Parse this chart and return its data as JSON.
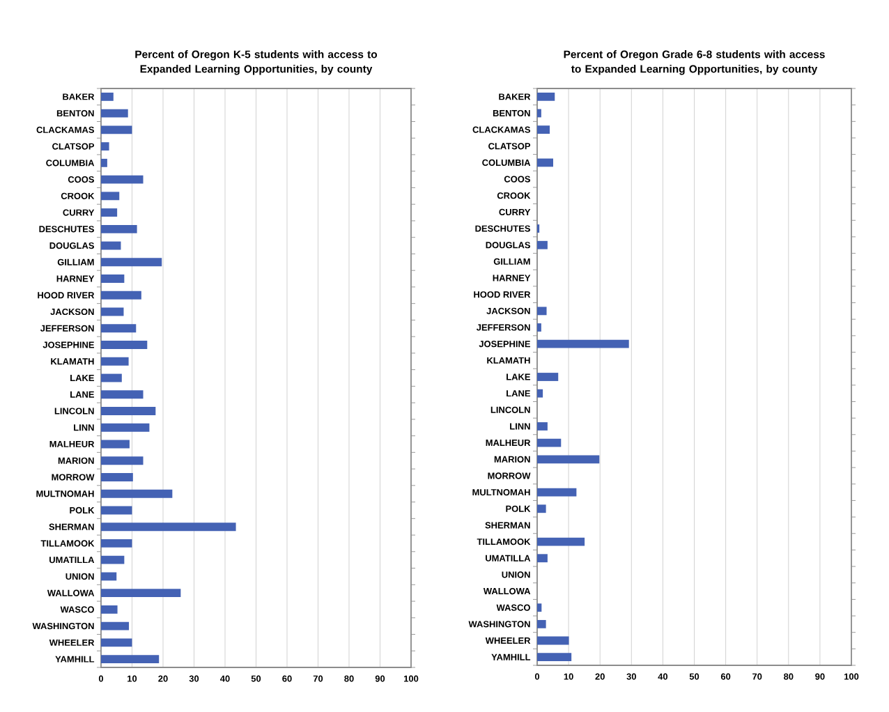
{
  "chart_data": [
    {
      "type": "bar",
      "orientation": "horizontal",
      "title": "Percent of Oregon K-5 students with access to Expanded Learning Opportunities, by county",
      "color": "#4462b4",
      "grid": "x",
      "xlim": [
        0,
        100
      ],
      "xticks": [
        0,
        10,
        20,
        30,
        40,
        50,
        60,
        70,
        80,
        90,
        100
      ],
      "categories": [
        "BAKER",
        "BENTON",
        "CLACKAMAS",
        "CLATSOP",
        "COLUMBIA",
        "COOS",
        "CROOK",
        "CURRY",
        "DESCHUTES",
        "DOUGLAS",
        "GILLIAM",
        "HARNEY",
        "HOOD RIVER",
        "JACKSON",
        "JEFFERSON",
        "JOSEPHINE",
        "KLAMATH",
        "LAKE",
        "LANE",
        "LINCOLN",
        "LINN",
        "MALHEUR",
        "MARION",
        "MORROW",
        "MULTNOMAH",
        "POLK",
        "SHERMAN",
        "TILLAMOOK",
        "UMATILLA",
        "UNION",
        "WALLOWA",
        "WASCO",
        "WASHINGTON",
        "WHEELER",
        "YAMHILL"
      ],
      "values": [
        4.0,
        8.7,
        10.0,
        2.6,
        2.0,
        13.6,
        5.9,
        5.2,
        11.6,
        6.4,
        19.6,
        7.5,
        13.0,
        7.3,
        11.3,
        14.9,
        8.9,
        6.7,
        13.6,
        17.6,
        15.6,
        9.2,
        13.6,
        10.3,
        23.0,
        10.0,
        43.5,
        10.0,
        7.5,
        5.0,
        25.7,
        5.3,
        9.0,
        10.0,
        18.7
      ]
    },
    {
      "type": "bar",
      "orientation": "horizontal",
      "title": "Percent of Oregon Grade 6-8 students with access to Expanded Learning Opportunities, by county",
      "color": "#4462b4",
      "grid": "x",
      "xlim": [
        0,
        100
      ],
      "xticks": [
        0,
        10,
        20,
        30,
        40,
        50,
        60,
        70,
        80,
        90,
        100
      ],
      "categories": [
        "BAKER",
        "BENTON",
        "CLACKAMAS",
        "CLATSOP",
        "COLUMBIA",
        "COOS",
        "CROOK",
        "CURRY",
        "DESCHUTES",
        "DOUGLAS",
        "GILLIAM",
        "HARNEY",
        "HOOD RIVER",
        "JACKSON",
        "JEFFERSON",
        "JOSEPHINE",
        "KLAMATH",
        "LAKE",
        "LANE",
        "LINCOLN",
        "LINN",
        "MALHEUR",
        "MARION",
        "MORROW",
        "MULTNOMAH",
        "POLK",
        "SHERMAN",
        "TILLAMOOK",
        "UMATILLA",
        "UNION",
        "WALLOWA",
        "WASCO",
        "WASHINGTON",
        "WHEELER",
        "YAMHILL"
      ],
      "values": [
        5.6,
        1.3,
        4.0,
        0,
        5.1,
        0,
        0,
        0,
        0.7,
        3.3,
        0,
        0,
        0,
        3.0,
        1.3,
        29.2,
        0,
        6.7,
        1.8,
        0,
        3.3,
        7.6,
        19.8,
        0,
        12.5,
        2.8,
        0,
        15.1,
        3.3,
        0,
        0,
        1.4,
        2.8,
        10.1,
        10.9
      ]
    }
  ]
}
